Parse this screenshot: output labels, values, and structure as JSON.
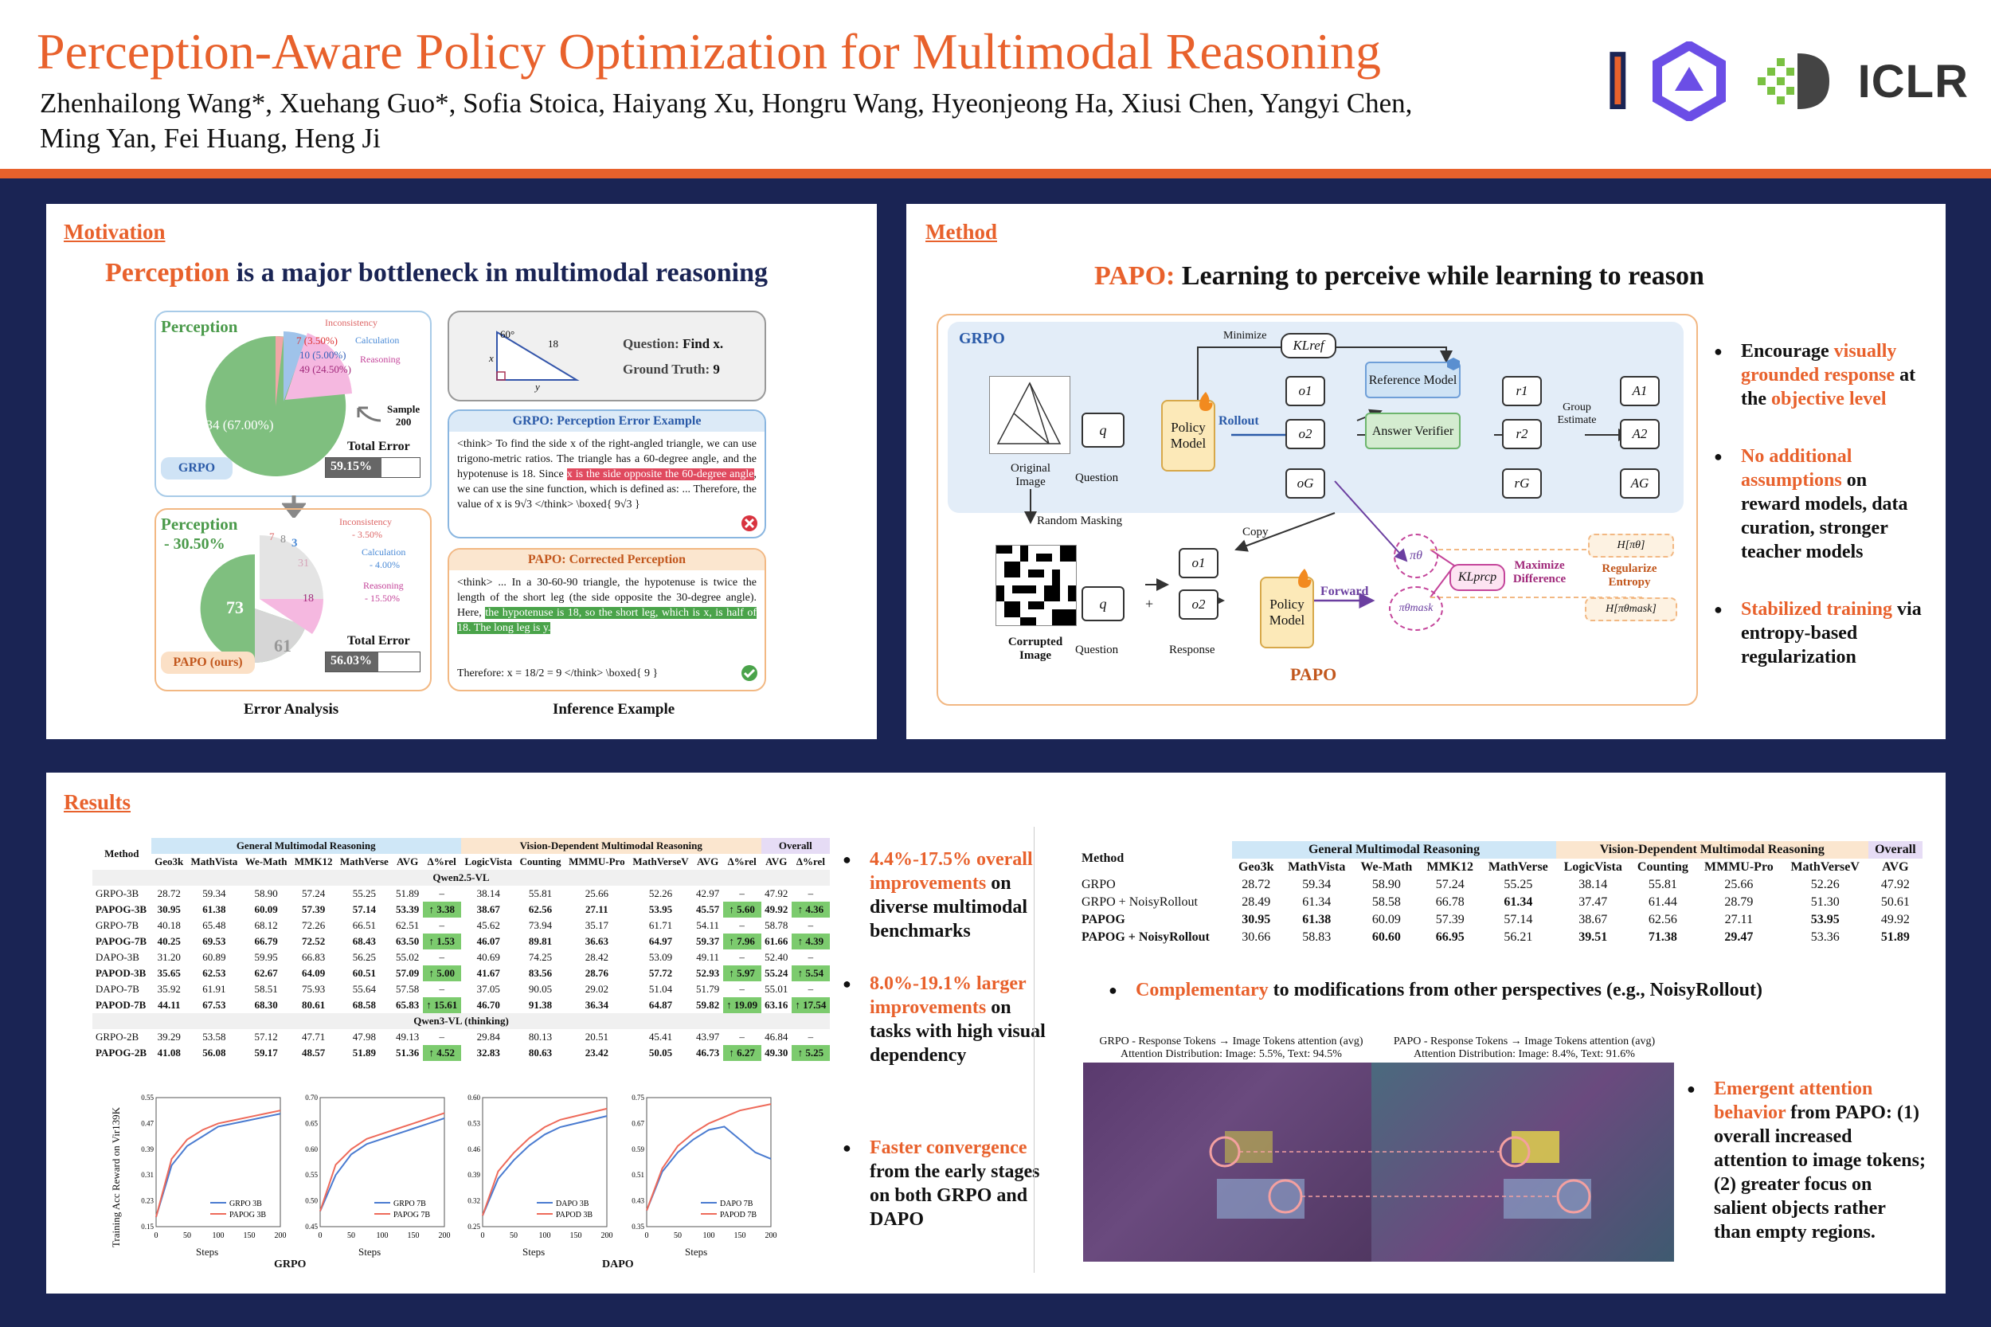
{
  "header": {
    "title": "Perception-Aware Policy Optimization for Multimodal Reasoning",
    "authors": "Zhenhailong Wang*, Xuehang Guo*, Sofia Stoica, Haiyang Xu, Hongru Wang, Hyeonjeong Ha, Xiusi Chen, Yangyi Chen, Ming Yan, Fei Huang, Heng Ji",
    "logo_text": "ICLR"
  },
  "motivation": {
    "section": "Motivation",
    "headline_hl": "Perception",
    "headline_rest": " is a major bottleneck in multimodal reasoning",
    "grpo_pie": {
      "label": "Perception",
      "perception": "134 (67.00%)",
      "inconsistency_label": "Inconsistency",
      "inconsistency": "7 (3.50%)",
      "calculation_label": "Calculation",
      "calculation": "10 (5.00%)",
      "reasoning_label": "Reasoning",
      "reasoning": "49 (24.50%)",
      "sample": "Sample",
      "sample_n": "200",
      "total_error_label": "Total Error",
      "total_error": "59.15%",
      "tag": "GRPO"
    },
    "papo_pie": {
      "label": "Perception",
      "delta": "- 30.50%",
      "perception": "73",
      "other": "61",
      "v7": "7",
      "v8": "8",
      "v3": "3",
      "v31": "31",
      "v18": "18",
      "inconsistency_label": "Inconsistency",
      "inconsistency_delta": "- 3.50%",
      "calculation_label": "Calculation",
      "calculation_delta": "- 4.00%",
      "reasoning_label": "Reasoning",
      "reasoning_delta": "- 15.50%",
      "total_error_label": "Total Error",
      "total_error": "56.03%",
      "tag": "PAPO (ours)"
    },
    "error_caption": "Error Analysis",
    "inference_caption": "Inference Example",
    "question_box": {
      "angle": "60°",
      "side": "18",
      "x": "x",
      "y": "y",
      "question_label": "Question:",
      "question": "Find x.",
      "truth_label": "Ground Truth:",
      "truth": "9"
    },
    "grpo_example": {
      "title": "GRPO: Perception Error Example",
      "text1": "<think> To find the side x of the right-angled triangle, we can use trigono-metric ratios. The triangle has a 60-degree angle, and the hypotenuse is 18. Since ",
      "hl1": "x is the side opposite the 60-degree angle",
      "text2": ", we can use the sine function, which is defined as: ... Therefore, the value of x is 9√3 </think> \\boxed{ 9√3 }"
    },
    "papo_example": {
      "title": "PAPO: Corrected Perception",
      "text1": "<think> ... In a 30-60-90 triangle, the hypotenuse is twice the length of the short leg (the side opposite the 30-degree angle). Here, ",
      "hl1": "the hypotenuse is 18, so the short leg, which is x, is half of 18. The long leg is y.",
      "therefore": "Therefore:   x = 18/2 = 9  </think> \\boxed{ 9 }"
    }
  },
  "method": {
    "section": "Method",
    "headline_hl": "PAPO:",
    "headline_rest": " Learning to perceive while learning to reason",
    "grpo_label": "GRPO",
    "papo_label": "PAPO",
    "minimize": "Minimize",
    "kl_ref": "KLref",
    "original_image": "Original Image",
    "question": "Question",
    "q": "q",
    "policy_model": "Policy Model",
    "rollout": "Rollout",
    "o1": "o1",
    "o2": "o2",
    "oG": "oG",
    "reference_model": "Reference Model",
    "answer_verifier": "Answer Verifier",
    "r1": "r1",
    "r2": "r2",
    "rG": "rG",
    "group_estimate": "Group Estimate",
    "a1": "A1",
    "a2": "A2",
    "aG": "AG",
    "random_masking": "Random Masking",
    "copy": "Copy",
    "corrupted_image": "Corrupted Image",
    "response": "Response",
    "forward": "Forward",
    "pi_theta": "πθ",
    "pi_mask": "πθmask",
    "kl_prcp": "KLprcp",
    "maximize_diff": "Maximize Difference",
    "h_pi": "H[πθ]",
    "h_pi_mask": "H[πθmask]",
    "regularize": "Regularize Entropy",
    "plus": "+",
    "bullets": [
      {
        "pre": "Encourage ",
        "hl": "visually grounded response",
        "mid": " at the ",
        "hl2": "objective level",
        "post": ""
      },
      {
        "pre": "",
        "hl": "No additional assumptions",
        "mid": " on reward models, data curation, stronger teacher models",
        "hl2": "",
        "post": ""
      },
      {
        "pre": "",
        "hl": "Stabilized training",
        "mid": " via entropy-based regularization",
        "hl2": "",
        "post": ""
      }
    ]
  },
  "results": {
    "section": "Results",
    "table1": {
      "group_headers": [
        "General Multimodal Reasoning",
        "Vision-Dependent Multimodal Reasoning",
        "Overall"
      ],
      "columns": [
        "Method",
        "Geo3k",
        "MathVista",
        "We-Math",
        "MMK12",
        "MathVerse",
        "AVG",
        "Δ%rel",
        "LogicVista",
        "Counting",
        "MMMU-Pro",
        "MathVerseV",
        "AVG",
        "Δ%rel",
        "AVG",
        "Δ%rel"
      ],
      "section_qwen25": "Qwen2.5-VL",
      "section_qwen3": "Qwen3-VL (thinking)",
      "rows": [
        {
          "bold": false,
          "cells": [
            "GRPO-3B",
            "28.72",
            "59.34",
            "58.90",
            "57.24",
            "55.25",
            "51.89",
            "–",
            "38.14",
            "55.81",
            "25.66",
            "52.26",
            "42.97",
            "–",
            "47.92",
            "–"
          ]
        },
        {
          "bold": true,
          "cells": [
            "PAPOG-3B",
            "30.95",
            "61.38",
            "60.09",
            "57.39",
            "57.14",
            "53.39",
            "↑ 3.38",
            "38.67",
            "62.56",
            "27.11",
            "53.95",
            "45.57",
            "↑ 5.60",
            "49.92",
            "↑ 4.36"
          ]
        },
        {
          "bold": false,
          "cells": [
            "GRPO-7B",
            "40.18",
            "65.48",
            "68.12",
            "72.26",
            "66.51",
            "62.51",
            "–",
            "45.62",
            "73.94",
            "35.17",
            "61.71",
            "54.11",
            "–",
            "58.78",
            "–"
          ]
        },
        {
          "bold": true,
          "cells": [
            "PAPOG-7B",
            "40.25",
            "69.53",
            "66.79",
            "72.52",
            "68.43",
            "63.50",
            "↑ 1.53",
            "46.07",
            "89.81",
            "36.63",
            "64.97",
            "59.37",
            "↑ 7.96",
            "61.66",
            "↑ 4.39"
          ]
        },
        {
          "bold": false,
          "cells": [
            "DAPO-3B",
            "31.20",
            "60.89",
            "59.95",
            "66.83",
            "56.25",
            "55.02",
            "–",
            "40.69",
            "74.25",
            "28.42",
            "53.09",
            "49.11",
            "–",
            "52.40",
            "–"
          ]
        },
        {
          "bold": true,
          "cells": [
            "PAPOD-3B",
            "35.65",
            "62.53",
            "62.67",
            "64.09",
            "60.51",
            "57.09",
            "↑ 5.00",
            "41.67",
            "83.56",
            "28.76",
            "57.72",
            "52.93",
            "↑ 5.97",
            "55.24",
            "↑ 5.54"
          ]
        },
        {
          "bold": false,
          "cells": [
            "DAPO-7B",
            "35.92",
            "61.91",
            "58.51",
            "75.93",
            "55.64",
            "57.58",
            "–",
            "37.05",
            "90.05",
            "29.02",
            "51.04",
            "51.79",
            "–",
            "55.01",
            "–"
          ]
        },
        {
          "bold": true,
          "cells": [
            "PAPOD-7B",
            "44.11",
            "67.53",
            "68.30",
            "80.61",
            "68.58",
            "65.83",
            "↑ 15.61",
            "46.70",
            "91.38",
            "36.34",
            "64.87",
            "59.82",
            "↑ 19.09",
            "63.16",
            "↑ 17.54"
          ]
        },
        {
          "bold": false,
          "cells": [
            "GRPO-2B",
            "39.29",
            "53.58",
            "57.12",
            "47.71",
            "47.98",
            "49.13",
            "–",
            "29.84",
            "80.13",
            "20.51",
            "45.41",
            "43.97",
            "–",
            "46.84",
            "–"
          ]
        },
        {
          "bold": true,
          "cells": [
            "PAPOG-2B",
            "41.08",
            "56.08",
            "59.17",
            "48.57",
            "51.89",
            "51.36",
            "↑ 4.52",
            "32.83",
            "80.63",
            "23.42",
            "50.05",
            "46.73",
            "↑ 6.27",
            "49.30",
            "↑ 5.25"
          ]
        }
      ]
    },
    "bullets1": [
      {
        "hl": "4.4%-17.5% overall improvements",
        "rest": " on diverse multimodal benchmarks"
      },
      {
        "hl": "8.0%-19.1% larger improvements",
        "rest": " on tasks with high visual dependency"
      },
      {
        "hl": "Faster convergence",
        "rest": " from the early stages on both GRPO and DAPO"
      }
    ],
    "table2": {
      "group_headers": [
        "General Multimodal Reasoning",
        "Vision-Dependent Multimodal Reasoning",
        "Overall"
      ],
      "columns": [
        "Method",
        "Geo3k",
        "MathVista",
        "We-Math",
        "MMK12",
        "MathVerse",
        "LogicVista",
        "Counting",
        "MMMU-Pro",
        "MathVerseV",
        "AVG"
      ],
      "rows": [
        {
          "cells": [
            "GRPO",
            "28.72",
            "59.34",
            "58.90",
            "57.24",
            "55.25",
            "38.14",
            "55.81",
            "25.66",
            "52.26",
            "47.92"
          ],
          "bold_idx": []
        },
        {
          "cells": [
            "GRPO + NoisyRollout",
            "28.49",
            "61.34",
            "58.58",
            "66.78",
            "61.34",
            "37.47",
            "61.44",
            "28.79",
            "51.30",
            "50.61"
          ],
          "bold_idx": [
            5
          ]
        },
        {
          "cells": [
            "PAPOG",
            "30.95",
            "61.38",
            "60.09",
            "57.39",
            "57.14",
            "38.67",
            "62.56",
            "27.11",
            "53.95",
            "49.92"
          ],
          "bold_idx": [
            0,
            1,
            2,
            9
          ]
        },
        {
          "cells": [
            "PAPOG + NoisyRollout",
            "30.66",
            "58.83",
            "60.60",
            "66.95",
            "56.21",
            "39.51",
            "71.38",
            "29.47",
            "53.36",
            "51.89"
          ],
          "bold_idx": [
            0,
            3,
            4,
            6,
            7,
            8,
            10
          ]
        }
      ]
    },
    "complementary": {
      "hl": "Complementary",
      "rest": " to modifications from other perspectives (e.g., NoisyRollout)"
    },
    "attention": {
      "grpo_title": "GRPO - Response Tokens → Image Tokens attention (avg)",
      "grpo_dist": "Attention Distribution: Image: 5.5%, Text: 94.5%",
      "papo_title": "PAPO - Response Tokens → Image Tokens attention (avg)",
      "papo_dist": "Attention Distribution: Image: 8.4%, Text: 91.6%"
    },
    "emergent": {
      "hl": "Emergent attention behavior",
      "rest": " from PAPO: (1) overall increased attention to image tokens; (2) greater focus on salient objects rather than empty regions."
    },
    "charts_ylabel": "Training Acc Reward on Vir139K",
    "charts_xlabel": "Steps",
    "grpo_caption": "GRPO",
    "dapo_caption": "DAPO"
  },
  "chart_data": [
    {
      "type": "line",
      "xlabel": "Steps",
      "ylabel": "Training Acc Reward on Vir139K",
      "ylim": [
        0.15,
        0.55
      ],
      "x": [
        0,
        25,
        50,
        75,
        100,
        125,
        150,
        175,
        200
      ],
      "series": [
        {
          "name": "GRPO 3B",
          "values": [
            0.18,
            0.34,
            0.4,
            0.43,
            0.46,
            0.47,
            0.48,
            0.49,
            0.5
          ]
        },
        {
          "name": "PAPOG 3B",
          "values": [
            0.18,
            0.36,
            0.42,
            0.45,
            0.47,
            0.48,
            0.49,
            0.5,
            0.51
          ]
        }
      ]
    },
    {
      "type": "line",
      "xlabel": "Steps",
      "ylabel": "",
      "ylim": [
        0.45,
        0.7
      ],
      "x": [
        0,
        25,
        50,
        75,
        100,
        125,
        150,
        175,
        200
      ],
      "series": [
        {
          "name": "GRPO 7B",
          "values": [
            0.48,
            0.55,
            0.59,
            0.61,
            0.62,
            0.63,
            0.64,
            0.65,
            0.66
          ]
        },
        {
          "name": "PAPOG 7B",
          "values": [
            0.48,
            0.57,
            0.6,
            0.62,
            0.63,
            0.64,
            0.65,
            0.66,
            0.67
          ]
        }
      ]
    },
    {
      "type": "line",
      "xlabel": "Steps",
      "ylabel": "",
      "ylim": [
        0.25,
        0.6
      ],
      "x": [
        0,
        25,
        50,
        75,
        100,
        125,
        150,
        175,
        200
      ],
      "series": [
        {
          "name": "DAPO 3B",
          "values": [
            0.28,
            0.38,
            0.43,
            0.47,
            0.5,
            0.52,
            0.53,
            0.54,
            0.55
          ]
        },
        {
          "name": "PAPOD 3B",
          "values": [
            0.28,
            0.4,
            0.45,
            0.49,
            0.52,
            0.54,
            0.55,
            0.56,
            0.57
          ]
        }
      ]
    },
    {
      "type": "line",
      "xlabel": "Steps",
      "ylabel": "",
      "ylim": [
        0.35,
        0.75
      ],
      "x": [
        0,
        25,
        50,
        75,
        100,
        125,
        150,
        175,
        200
      ],
      "series": [
        {
          "name": "DAPO 7B",
          "values": [
            0.4,
            0.52,
            0.58,
            0.62,
            0.65,
            0.66,
            0.62,
            0.58,
            0.56
          ]
        },
        {
          "name": "PAPOD 7B",
          "values": [
            0.4,
            0.53,
            0.6,
            0.64,
            0.67,
            0.69,
            0.71,
            0.72,
            0.73
          ]
        }
      ]
    }
  ]
}
